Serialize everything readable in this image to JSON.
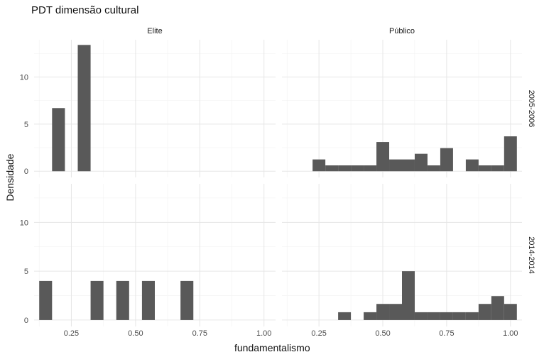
{
  "chart_data": {
    "type": "bar",
    "title": "PDT dimensão cultural",
    "xlabel": "fundamentalismo",
    "ylabel": "Densidade",
    "xlim": [
      0.105,
      1.045
    ],
    "ylim": [
      -0.66,
      13.95
    ],
    "x_ticks": [
      0.25,
      0.5,
      0.75,
      1.0
    ],
    "x_tick_labels": [
      "0.25",
      "0.50",
      "0.75",
      "1.00"
    ],
    "y_ticks": [
      0,
      5,
      10
    ],
    "y_tick_labels": [
      "0",
      "5",
      "10"
    ],
    "grid": true,
    "bar_color": "#595959",
    "bin_width": 0.05,
    "facet_cols": [
      "Elite",
      "Público"
    ],
    "facet_rows": [
      "2005-2006",
      "2014-2014"
    ],
    "panels": [
      {
        "row": "2005-2006",
        "col": "Elite",
        "bins": [
          {
            "x": 0.2,
            "y": 6.7
          },
          {
            "x": 0.3,
            "y": 13.4
          }
        ]
      },
      {
        "row": "2005-2006",
        "col": "Público",
        "bins": [
          {
            "x": 0.25,
            "y": 1.25
          },
          {
            "x": 0.3,
            "y": 0.62
          },
          {
            "x": 0.35,
            "y": 0.62
          },
          {
            "x": 0.4,
            "y": 0.62
          },
          {
            "x": 0.45,
            "y": 0.62
          },
          {
            "x": 0.5,
            "y": 3.1
          },
          {
            "x": 0.55,
            "y": 1.25
          },
          {
            "x": 0.6,
            "y": 1.25
          },
          {
            "x": 0.65,
            "y": 1.85
          },
          {
            "x": 0.7,
            "y": 0.62
          },
          {
            "x": 0.75,
            "y": 2.45
          },
          {
            "x": 0.85,
            "y": 1.25
          },
          {
            "x": 0.9,
            "y": 0.62
          },
          {
            "x": 0.95,
            "y": 0.62
          },
          {
            "x": 1.0,
            "y": 3.7
          }
        ]
      },
      {
        "row": "2014-2014",
        "col": "Elite",
        "bins": [
          {
            "x": 0.15,
            "y": 4.0
          },
          {
            "x": 0.35,
            "y": 4.0
          },
          {
            "x": 0.45,
            "y": 4.0
          },
          {
            "x": 0.55,
            "y": 4.0
          },
          {
            "x": 0.7,
            "y": 4.0
          }
        ]
      },
      {
        "row": "2014-2014",
        "col": "Público",
        "bins": [
          {
            "x": 0.35,
            "y": 0.8
          },
          {
            "x": 0.45,
            "y": 0.8
          },
          {
            "x": 0.5,
            "y": 1.65
          },
          {
            "x": 0.55,
            "y": 1.65
          },
          {
            "x": 0.6,
            "y": 5.0
          },
          {
            "x": 0.65,
            "y": 0.8
          },
          {
            "x": 0.7,
            "y": 0.8
          },
          {
            "x": 0.75,
            "y": 0.8
          },
          {
            "x": 0.8,
            "y": 0.8
          },
          {
            "x": 0.85,
            "y": 0.8
          },
          {
            "x": 0.9,
            "y": 1.65
          },
          {
            "x": 0.95,
            "y": 2.45
          },
          {
            "x": 1.0,
            "y": 1.65
          }
        ]
      }
    ]
  }
}
